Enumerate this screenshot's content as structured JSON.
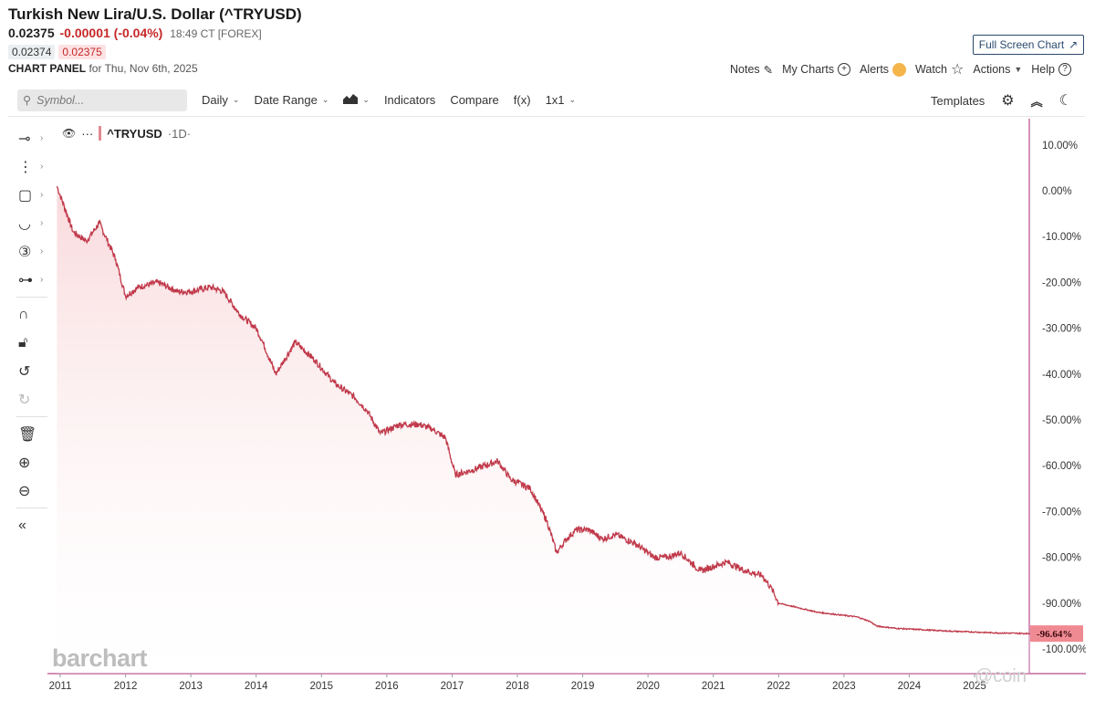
{
  "header": {
    "title": "Turkish New Lira/U.S. Dollar (^TRYUSD)",
    "last_price": "0.02375",
    "change": "-0.00001 (-0.04%)",
    "timestamp": "18:49 CT [FOREX]",
    "bid": "0.02374",
    "ask": "0.02375",
    "panel_label": "CHART PANEL",
    "panel_date": "for Thu, Nov 6th, 2025",
    "full_screen_label": "Full Screen Chart"
  },
  "top_actions": {
    "notes": "Notes",
    "my_charts": "My Charts",
    "alerts": "Alerts",
    "watch": "Watch",
    "actions": "Actions",
    "help": "Help"
  },
  "toolbar": {
    "search_placeholder": "Symbol...",
    "period": "Daily",
    "date_range": "Date Range",
    "indicators": "Indicators",
    "compare": "Compare",
    "fx": "f(x)",
    "layout": "1x1",
    "templates": "Templates"
  },
  "legend": {
    "symbol": "^TRYUSD",
    "period": "·1D·"
  },
  "watermark": "barchart",
  "source_mark": "@coin",
  "colors": {
    "line": "#c0394a",
    "fill_top": "#f8d3d6",
    "axis_line": "#b74a8a",
    "last_badge": "#f08a92"
  },
  "chart_data": {
    "type": "area",
    "title": "^TRYUSD",
    "xlabel": "",
    "ylabel": "",
    "x_ticks": [
      "2011",
      "2012",
      "2013",
      "2014",
      "2015",
      "2016",
      "2017",
      "2018",
      "2019",
      "2020",
      "2021",
      "2022",
      "2023",
      "2024",
      "2025"
    ],
    "y_ticks": [
      "10.00%",
      "0.00%",
      "-10.00%",
      "-20.00%",
      "-30.00%",
      "-40.00%",
      "-50.00%",
      "-60.00%",
      "-70.00%",
      "-80.00%",
      "-90.00%",
      "-100.00%"
    ],
    "ylim": [
      -100,
      10
    ],
    "last_value_label": "-96.64%",
    "series": [
      {
        "name": "^TRYUSD",
        "x": [
          2010.95,
          2011.2,
          2011.4,
          2011.6,
          2011.85,
          2012.0,
          2012.2,
          2012.5,
          2012.8,
          2013.0,
          2013.3,
          2013.5,
          2013.75,
          2014.0,
          2014.1,
          2014.3,
          2014.6,
          2014.9,
          2015.2,
          2015.5,
          2015.7,
          2015.9,
          2016.2,
          2016.5,
          2016.7,
          2016.9,
          2017.05,
          2017.3,
          2017.7,
          2017.9,
          2018.2,
          2018.45,
          2018.6,
          2018.75,
          2018.9,
          2019.1,
          2019.3,
          2019.5,
          2019.8,
          2020.1,
          2020.3,
          2020.5,
          2020.8,
          2021.0,
          2021.2,
          2021.5,
          2021.75,
          2021.9,
          2022.0,
          2022.3,
          2022.6,
          2022.9,
          2023.2,
          2023.4,
          2023.5,
          2023.8,
          2024.2,
          2024.6,
          2025.0,
          2025.35,
          2025.85
        ],
        "y": [
          1,
          -9,
          -11,
          -7,
          -15,
          -23,
          -21,
          -20,
          -22,
          -22,
          -21,
          -22,
          -27,
          -30,
          -33,
          -40,
          -33,
          -37,
          -42,
          -45,
          -48,
          -53,
          -51,
          -51,
          -52,
          -54,
          -62,
          -61,
          -59,
          -63,
          -65,
          -72,
          -79,
          -76,
          -74,
          -74,
          -76,
          -75,
          -77,
          -80,
          -80,
          -79,
          -83,
          -82,
          -81,
          -83,
          -84,
          -87,
          -90,
          -91,
          -92,
          -92.5,
          -93,
          -94,
          -95,
          -95.5,
          -95.8,
          -96.1,
          -96.3,
          -96.5,
          -96.64
        ]
      }
    ]
  }
}
